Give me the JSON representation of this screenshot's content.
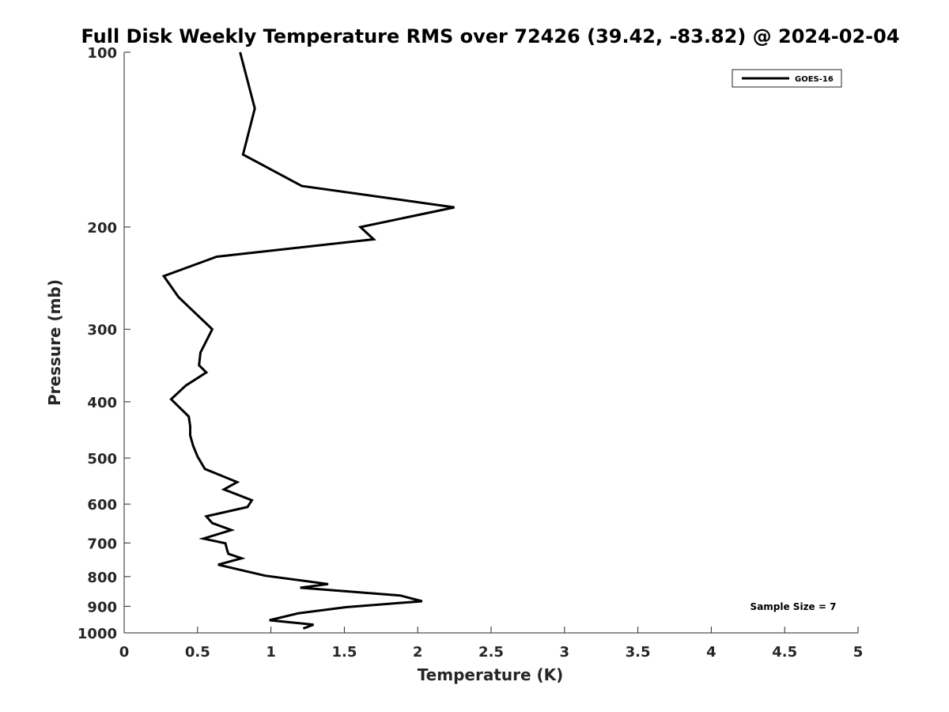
{
  "chart_data": {
    "type": "line",
    "title": "Full Disk Weekly Temperature RMS over 72426 (39.42, -83.82) @ 2024-02-04",
    "xlabel": "Temperature (K)",
    "ylabel": "Pressure (mb)",
    "xlim": [
      0,
      5
    ],
    "ylim": [
      100,
      1000
    ],
    "yscale": "log",
    "y_reversed": true,
    "xticks": [
      "0",
      "0.5",
      "1",
      "1.5",
      "2",
      "2.5",
      "3",
      "3.5",
      "4",
      "4.5",
      "5"
    ],
    "yticks": [
      "100",
      "200",
      "300",
      "400",
      "500",
      "600",
      "700",
      "800",
      "900",
      "1000"
    ],
    "legend_position": "top-right",
    "grid": false,
    "annotation": "Sample Size = 7",
    "series": [
      {
        "name": "GOES-16",
        "color": "#000000",
        "points": [
          [
            0.79,
            100
          ],
          [
            0.89,
            125
          ],
          [
            0.81,
            150
          ],
          [
            1.21,
            170
          ],
          [
            2.25,
            185
          ],
          [
            1.61,
            200
          ],
          [
            1.7,
            210
          ],
          [
            0.63,
            225
          ],
          [
            0.27,
            243
          ],
          [
            0.37,
            264
          ],
          [
            0.6,
            300
          ],
          [
            0.52,
            329
          ],
          [
            0.51,
            346
          ],
          [
            0.56,
            356
          ],
          [
            0.42,
            375
          ],
          [
            0.32,
            396
          ],
          [
            0.44,
            424
          ],
          [
            0.45,
            441
          ],
          [
            0.45,
            457
          ],
          [
            0.47,
            476
          ],
          [
            0.5,
            497
          ],
          [
            0.55,
            522
          ],
          [
            0.77,
            550
          ],
          [
            0.68,
            566
          ],
          [
            0.87,
            591
          ],
          [
            0.84,
            607
          ],
          [
            0.56,
            630
          ],
          [
            0.6,
            647
          ],
          [
            0.73,
            665
          ],
          [
            0.54,
            688
          ],
          [
            0.69,
            701
          ],
          [
            0.7,
            718
          ],
          [
            0.71,
            731
          ],
          [
            0.8,
            744
          ],
          [
            0.64,
            763
          ],
          [
            0.96,
            797
          ],
          [
            1.39,
            824
          ],
          [
            1.2,
            836
          ],
          [
            1.88,
            862
          ],
          [
            2.03,
            882
          ],
          [
            1.51,
            903
          ],
          [
            1.19,
            925
          ],
          [
            0.99,
            951
          ],
          [
            1.29,
            968
          ],
          [
            1.22,
            983
          ]
        ]
      }
    ]
  }
}
